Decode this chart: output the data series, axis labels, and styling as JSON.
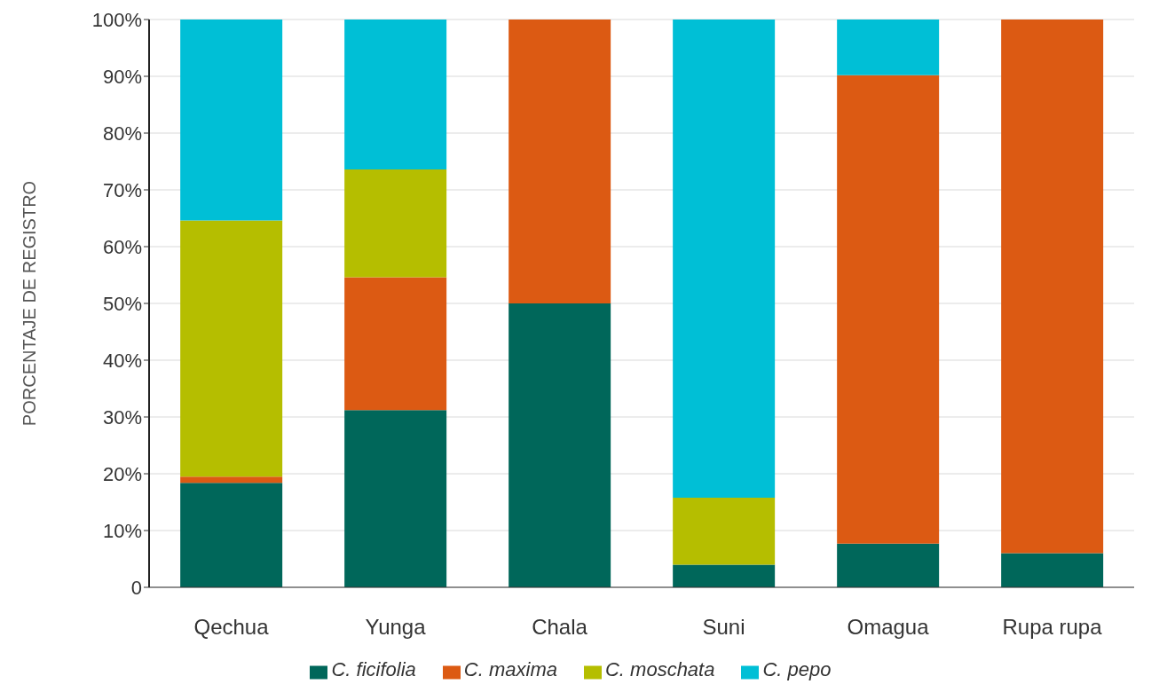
{
  "chart_data": {
    "type": "bar",
    "stacked": true,
    "ylabel": "PORCENTAJE DE REGISTRO",
    "categories": [
      "Qechua",
      "Yunga",
      "Chala",
      "Suni",
      "Omagua",
      "Rupa rupa"
    ],
    "series": [
      {
        "name": "C. ficifolia",
        "color": "#00675a",
        "values": [
          18.4,
          31.2,
          50,
          4.0,
          7.7,
          6.0
        ]
      },
      {
        "name": "C. maxima",
        "color": "#dc5a13",
        "values": [
          1.1,
          23.4,
          50,
          0,
          82.5,
          94.0
        ]
      },
      {
        "name": "C. moschata",
        "color": "#b5be00",
        "values": [
          45.1,
          19.0,
          0,
          11.8,
          0,
          0
        ]
      },
      {
        "name": "C. pepo",
        "color": "#00bfd6",
        "values": [
          35.4,
          26.4,
          0,
          84.2,
          9.8,
          0
        ]
      }
    ],
    "ylim": [
      0,
      100
    ],
    "yticks": [
      0,
      {
        "value": 10,
        "label": "10%"
      },
      {
        "value": 20,
        "label": "20%"
      },
      {
        "value": 30,
        "label": "30%"
      },
      {
        "value": 40,
        "label": "40%"
      },
      {
        "value": 50,
        "label": "50%"
      },
      {
        "value": 60,
        "label": "60%"
      },
      {
        "value": 70,
        "label": "70%"
      },
      {
        "value": 80,
        "label": "80%"
      },
      {
        "value": 90,
        "label": "90%"
      },
      {
        "value": 100,
        "label": "100%"
      }
    ],
    "grid": "y",
    "legend": "bottom"
  }
}
